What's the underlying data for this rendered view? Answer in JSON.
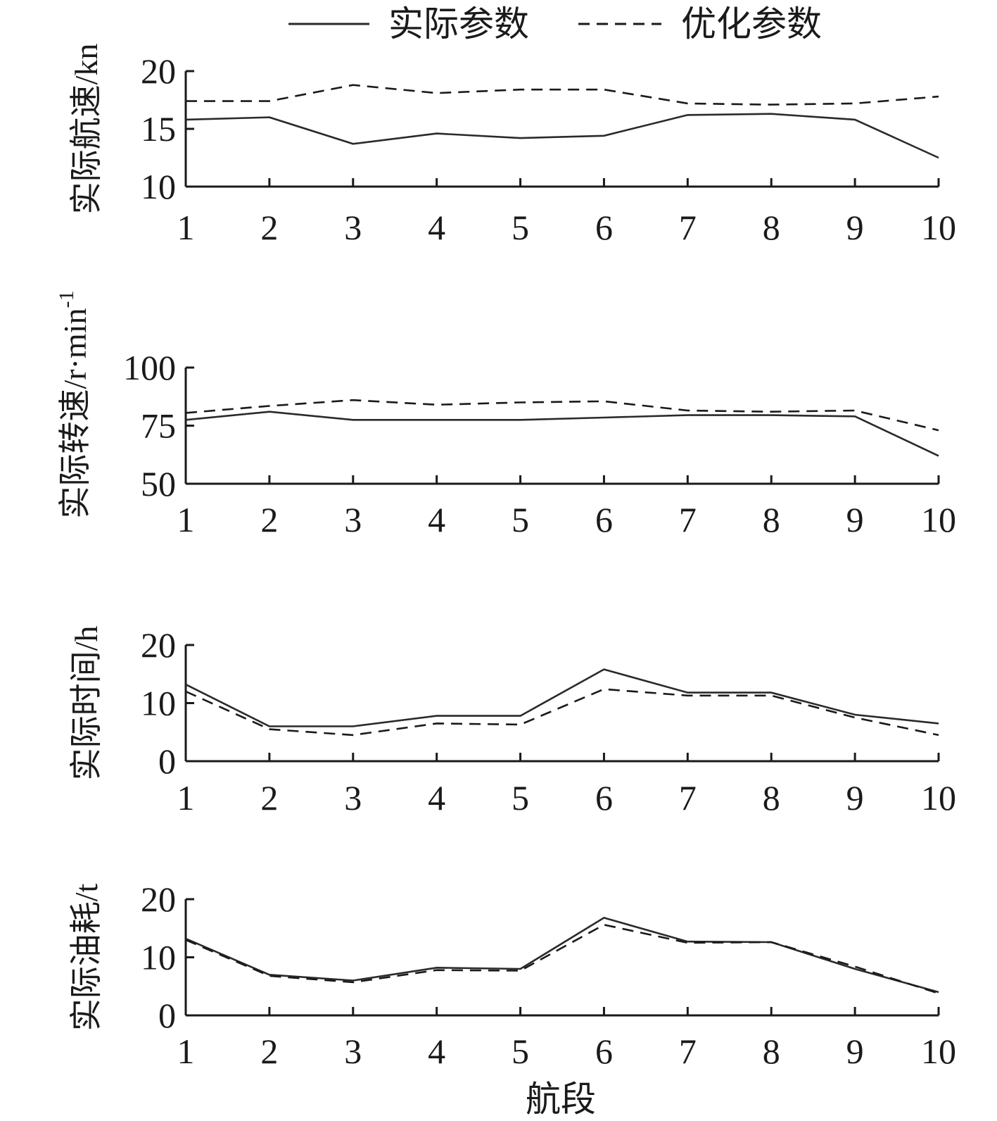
{
  "legend": {
    "items": [
      {
        "label": "实际参数",
        "style": "solid"
      },
      {
        "label": "优化参数",
        "style": "dashed"
      }
    ]
  },
  "xlabel": "航段",
  "chart_data": [
    {
      "type": "line",
      "ylabel": "实际航速/kn",
      "ylim": [
        10,
        20
      ],
      "yticks": [
        "10",
        "15",
        "20"
      ],
      "categories": [
        "1",
        "2",
        "3",
        "4",
        "5",
        "6",
        "7",
        "8",
        "9",
        "10"
      ],
      "series": [
        {
          "name": "实际参数",
          "values": [
            15.8,
            16.0,
            13.7,
            14.6,
            14.2,
            14.4,
            16.2,
            16.3,
            15.8,
            12.5
          ]
        },
        {
          "name": "优化参数",
          "values": [
            17.4,
            17.4,
            18.8,
            18.1,
            18.4,
            18.4,
            17.2,
            17.1,
            17.2,
            17.8
          ]
        }
      ]
    },
    {
      "type": "line",
      "ylabel": "实际转速/r·min⁻¹",
      "ylim": [
        50,
        100
      ],
      "yticks": [
        "50",
        "75",
        "100"
      ],
      "categories": [
        "1",
        "2",
        "3",
        "4",
        "5",
        "6",
        "7",
        "8",
        "9",
        "10"
      ],
      "series": [
        {
          "name": "实际参数",
          "values": [
            77.5,
            81.0,
            77.5,
            77.5,
            77.5,
            78.5,
            79.5,
            79.5,
            79.0,
            62.0
          ]
        },
        {
          "name": "优化参数",
          "values": [
            80.5,
            83.5,
            86.0,
            84.0,
            85.0,
            85.5,
            81.5,
            81.0,
            81.5,
            73.0
          ]
        }
      ]
    },
    {
      "type": "line",
      "ylabel": "实际时间/h",
      "ylim": [
        0,
        20
      ],
      "yticks": [
        "0",
        "10",
        "20"
      ],
      "categories": [
        "1",
        "2",
        "3",
        "4",
        "5",
        "6",
        "7",
        "8",
        "9",
        "10"
      ],
      "series": [
        {
          "name": "实际参数",
          "values": [
            13.2,
            6.0,
            6.0,
            7.8,
            7.8,
            15.8,
            11.8,
            11.8,
            8.0,
            6.5
          ]
        },
        {
          "name": "优化参数",
          "values": [
            12.0,
            5.5,
            4.5,
            6.5,
            6.3,
            12.4,
            11.3,
            11.3,
            7.5,
            4.5
          ]
        }
      ]
    },
    {
      "type": "line",
      "ylabel": "实际油耗/t",
      "ylim": [
        0,
        20
      ],
      "yticks": [
        "0",
        "10",
        "20"
      ],
      "categories": [
        "1",
        "2",
        "3",
        "4",
        "5",
        "6",
        "7",
        "8",
        "9",
        "10"
      ],
      "series": [
        {
          "name": "实际参数",
          "values": [
            13.2,
            7.0,
            6.0,
            8.2,
            8.0,
            16.8,
            12.7,
            12.6,
            8.0,
            4.0
          ]
        },
        {
          "name": "优化参数",
          "values": [
            13.0,
            6.8,
            5.7,
            7.8,
            7.7,
            15.6,
            12.5,
            12.6,
            8.4,
            3.8
          ]
        }
      ]
    }
  ]
}
